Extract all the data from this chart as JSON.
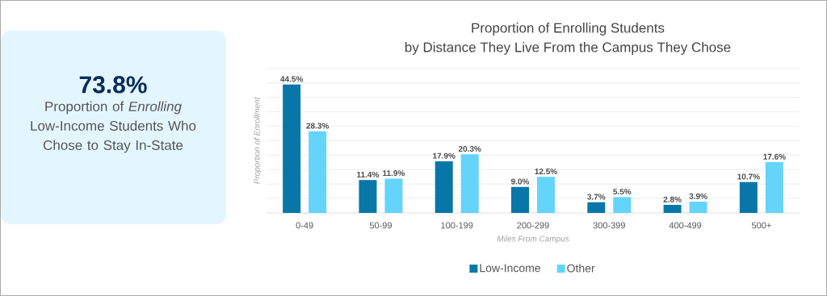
{
  "chart_data": [
    {
      "type": "other",
      "title": "73.8%",
      "annotations": [
        "Proportion of *Enrolling* Low-Income Students Who Chose to Stay In-State"
      ]
    },
    {
      "type": "bar",
      "title": "Proportion of Enrolling Students",
      "subtitle": "by Distance They Live From the Campus They Chose",
      "xlabel": "Miles From Campus",
      "ylabel": "Proportion of Enrollment",
      "categories": [
        "0-49",
        "50-99",
        "100-199",
        "200-299",
        "300-399",
        "400-499",
        "500+"
      ],
      "series": [
        {
          "name": "Low-Income",
          "color": "#0877a8",
          "values": [
            44.5,
            11.4,
            17.9,
            9.0,
            3.7,
            2.8,
            10.7
          ],
          "value_labels": [
            "44.5%",
            "11.4%",
            "17.9%",
            "9.0%",
            "3.7%",
            "2.8%",
            "10.7%"
          ]
        },
        {
          "name": "Other",
          "color": "#64d4fb",
          "values": [
            28.3,
            11.9,
            20.3,
            12.5,
            5.5,
            3.9,
            17.6
          ],
          "value_labels": [
            "28.3%",
            "11.9%",
            "20.3%",
            "12.5%",
            "5.5%",
            "3.9%",
            "17.6%"
          ]
        }
      ],
      "ylim": [
        0,
        50
      ],
      "yticks": [
        0,
        5,
        10,
        15,
        20,
        25,
        30,
        35,
        40,
        45,
        50
      ],
      "tick_labels": "x",
      "grid": "y",
      "legend": "bottom"
    }
  ]
}
